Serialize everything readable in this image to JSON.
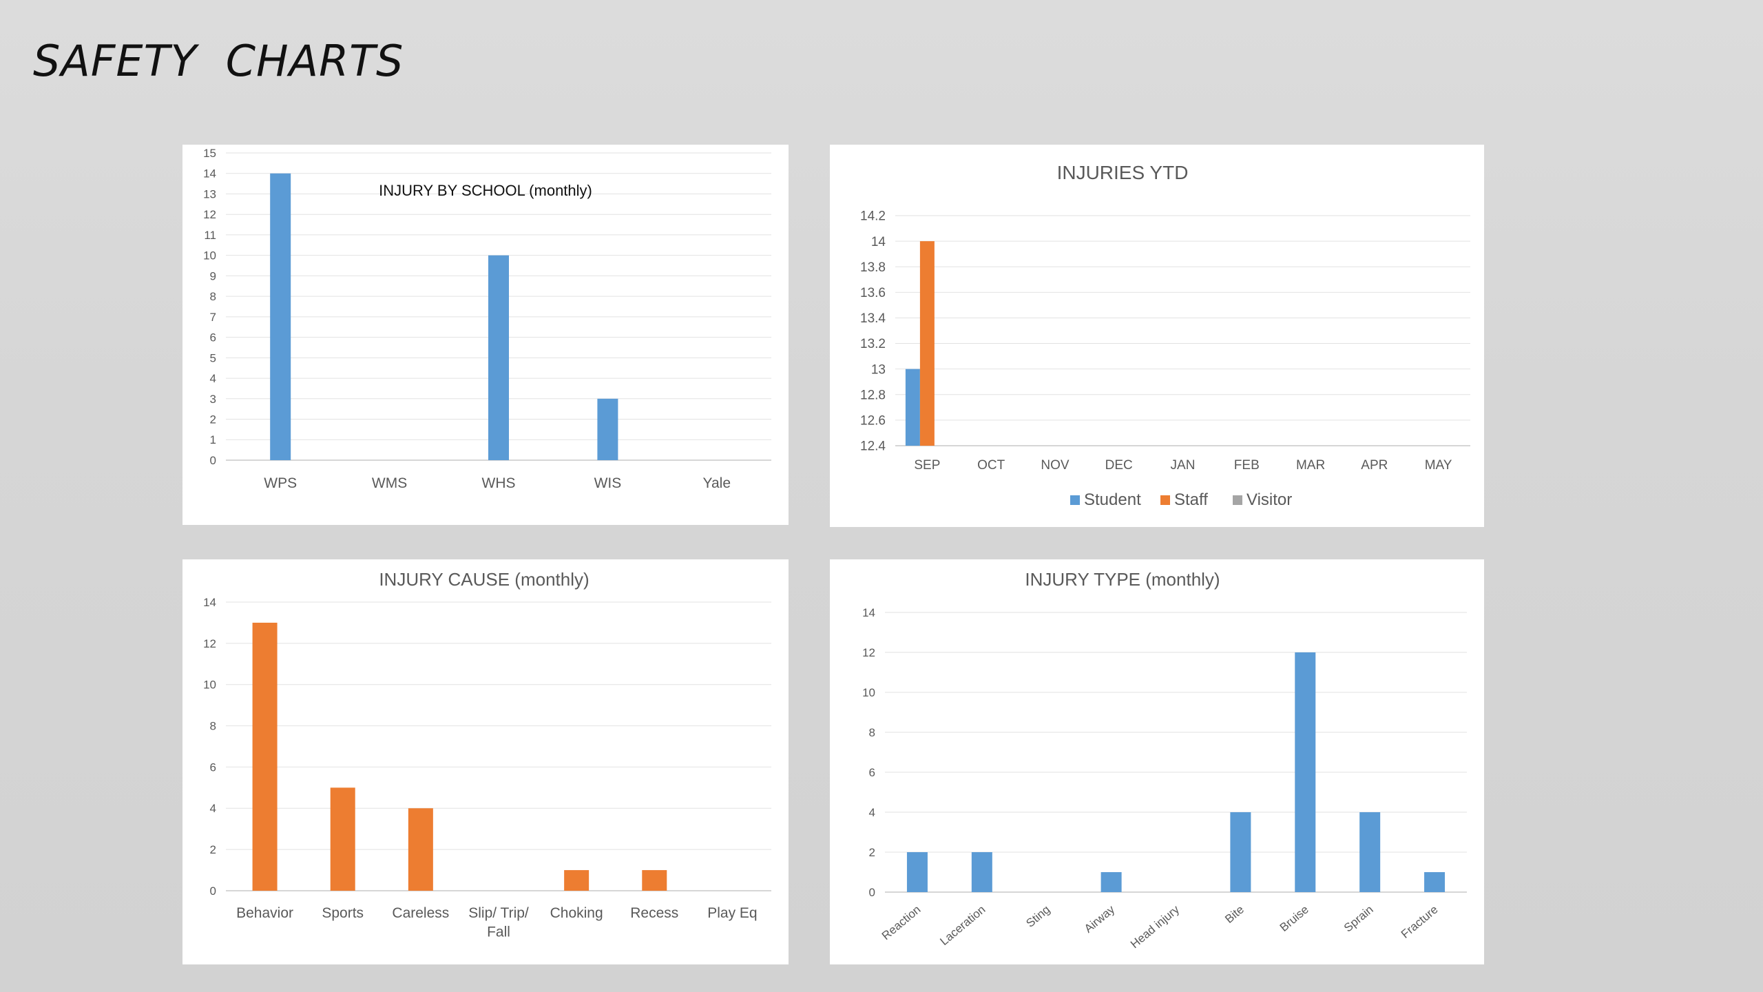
{
  "page": {
    "title": "SAFETY  CHARTS"
  },
  "chart_data": [
    {
      "id": "school",
      "type": "bar",
      "title": "INJURY BY SCHOOL (monthly)",
      "categories": [
        "WPS",
        "WMS",
        "WHS",
        "WIS",
        "Yale"
      ],
      "series": [
        {
          "name": "",
          "color": "#5b9bd5",
          "values": [
            14,
            0,
            10,
            3,
            0
          ]
        }
      ],
      "ylim": [
        0,
        15
      ],
      "yticks": [
        "0",
        "1",
        "2",
        "3",
        "4",
        "5",
        "6",
        "7",
        "8",
        "9",
        "10",
        "11",
        "12",
        "13",
        "14",
        "15"
      ],
      "grid": true,
      "legend": []
    },
    {
      "id": "ytd",
      "type": "bar",
      "title": "INJURIES  YTD",
      "categories": [
        "SEP",
        "OCT",
        "NOV",
        "DEC",
        "JAN",
        "FEB",
        "MAR",
        "APR",
        "MAY"
      ],
      "series": [
        {
          "name": "Student",
          "color": "#5b9bd5",
          "values": [
            13,
            null,
            null,
            null,
            null,
            null,
            null,
            null,
            null
          ]
        },
        {
          "name": "Staff",
          "color": "#ed7d31",
          "values": [
            14,
            null,
            null,
            null,
            null,
            null,
            null,
            null,
            null
          ]
        },
        {
          "name": "Visitor",
          "color": "#a5a5a5",
          "values": [
            null,
            null,
            null,
            null,
            null,
            null,
            null,
            null,
            null
          ]
        }
      ],
      "ylim": [
        12.4,
        14.2
      ],
      "yticks": [
        "12.4",
        "12.6",
        "12.8",
        "13",
        "13.2",
        "13.4",
        "13.6",
        "13.8",
        "14",
        "14.2"
      ],
      "grid": true,
      "legend": [
        "Student",
        "Staff",
        "Visitor"
      ]
    },
    {
      "id": "cause",
      "type": "bar",
      "title": "INJURY CAUSE (monthly)",
      "categories": [
        "Behavior",
        "Sports",
        "Careless",
        "Slip/ Trip/ Fall",
        "Choking",
        "Recess",
        "Play Eq"
      ],
      "category_lines": [
        [
          "Behavior"
        ],
        [
          "Sports"
        ],
        [
          "Careless"
        ],
        [
          "Slip/ Trip/",
          "Fall"
        ],
        [
          "Choking"
        ],
        [
          "Recess"
        ],
        [
          "Play Eq"
        ]
      ],
      "series": [
        {
          "name": "",
          "color": "#ed7d31",
          "values": [
            13,
            5,
            4,
            0,
            1,
            1,
            0
          ]
        }
      ],
      "ylim": [
        0,
        14
      ],
      "yticks": [
        "0",
        "2",
        "4",
        "6",
        "8",
        "10",
        "12",
        "14"
      ],
      "grid": true,
      "legend": []
    },
    {
      "id": "type",
      "type": "bar",
      "title": "INJURY TYPE (monthly)",
      "categories": [
        "Reaction",
        "Laceration",
        "Sting",
        "Airway",
        "Head injury",
        "Bite",
        "Bruise",
        "Sprain",
        "Fracture"
      ],
      "series": [
        {
          "name": "",
          "color": "#5b9bd5",
          "values": [
            2,
            2,
            0,
            1,
            0,
            4,
            12,
            4,
            1
          ]
        }
      ],
      "ylim": [
        0,
        14
      ],
      "yticks": [
        "0",
        "2",
        "4",
        "6",
        "8",
        "10",
        "12",
        "14"
      ],
      "grid": true,
      "legend": []
    }
  ]
}
